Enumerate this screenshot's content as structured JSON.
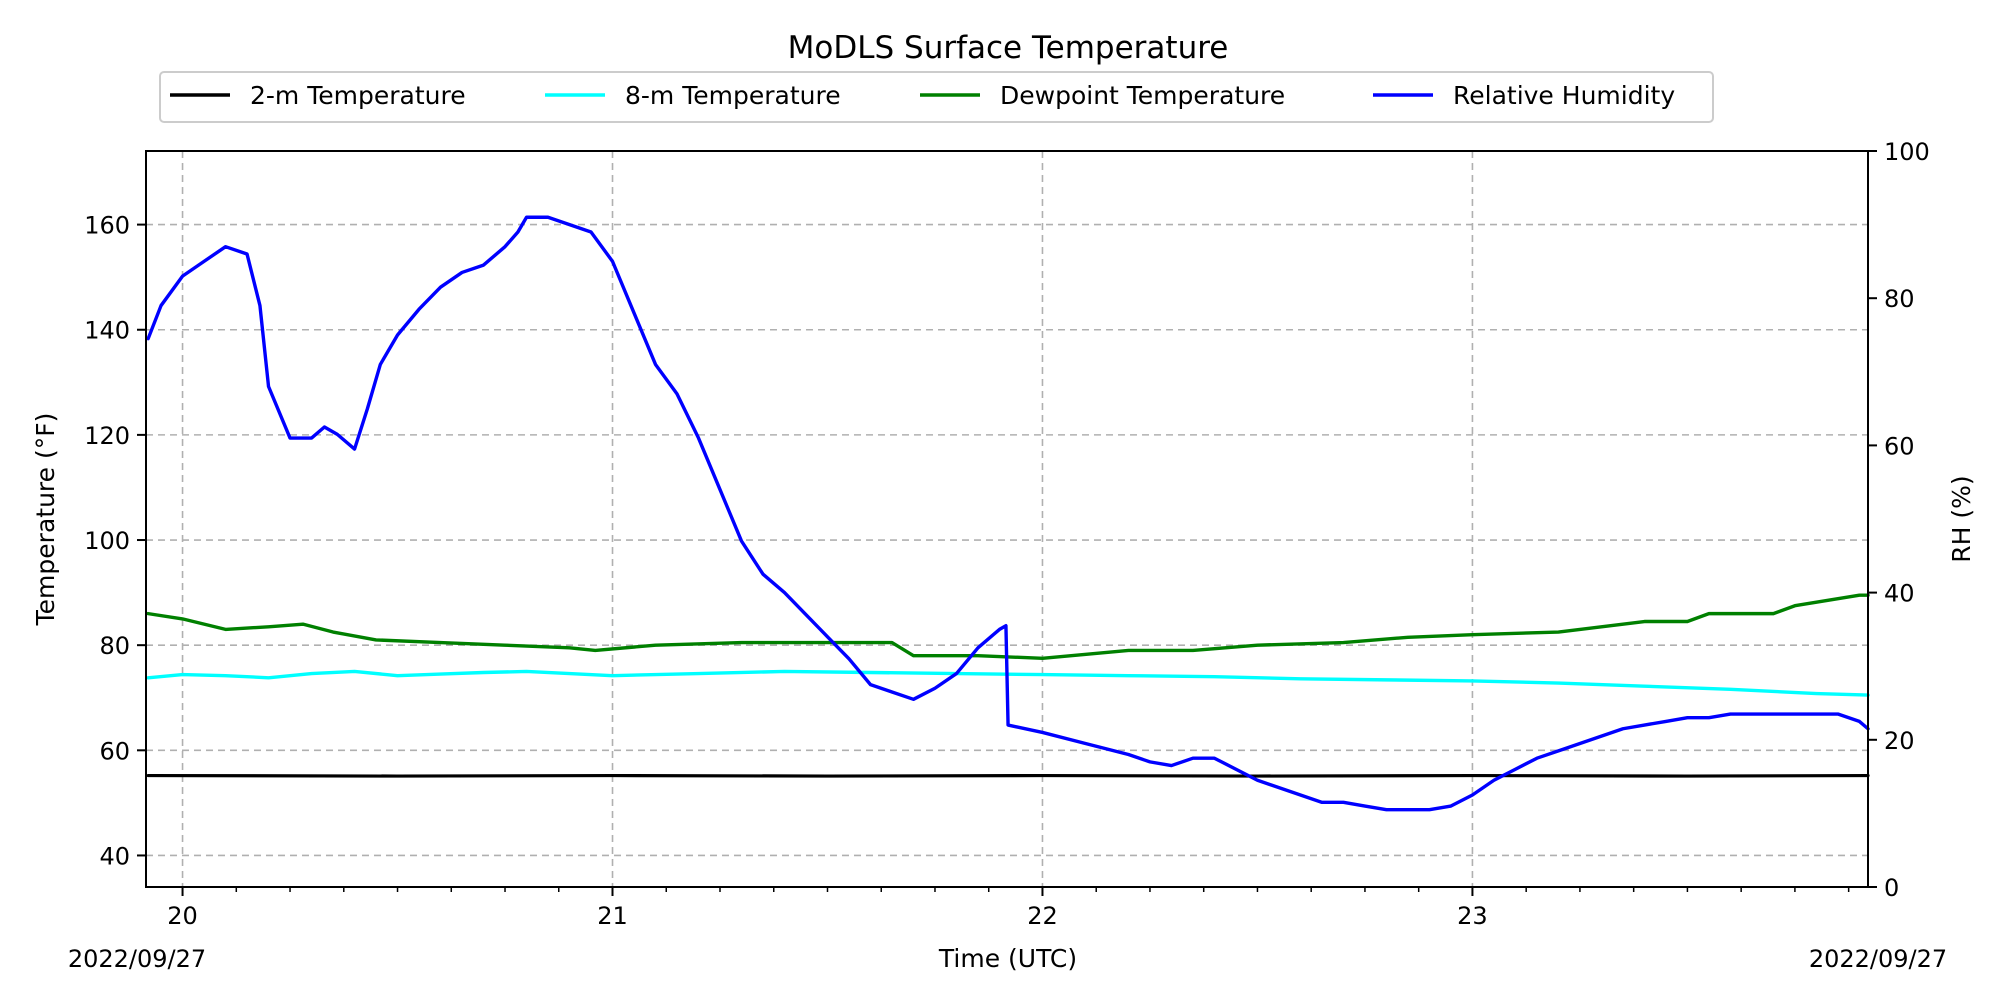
{
  "chart_data": {
    "type": "line",
    "title": "MoDLS Surface Temperature",
    "xlabel": "Time (UTC)",
    "ylabel": "Temperature ($^\\circ$F)",
    "ylabel_display": "Temperature (°F)",
    "y2label": "RH (%)",
    "x_start_label": "2022/09/27",
    "x_end_label": "2022/09/27",
    "xlim": [
      19.915,
      23.92
    ],
    "ylim": [
      34,
      174
    ],
    "y2lim": [
      0,
      100
    ],
    "grid": true,
    "legend_position": "top, above axes",
    "x_ticks": [
      {
        "value": 20,
        "label": "20"
      },
      {
        "value": 21,
        "label": "21"
      },
      {
        "value": 22,
        "label": "22"
      },
      {
        "value": 23,
        "label": "23"
      }
    ],
    "y_ticks": [
      {
        "value": 40,
        "label": "40"
      },
      {
        "value": 60,
        "label": "60"
      },
      {
        "value": 80,
        "label": "80"
      },
      {
        "value": 100,
        "label": "100"
      },
      {
        "value": 120,
        "label": "120"
      },
      {
        "value": 140,
        "label": "140"
      },
      {
        "value": 160,
        "label": "160"
      }
    ],
    "y2_ticks": [
      {
        "value": 0,
        "label": "0"
      },
      {
        "value": 20,
        "label": "20"
      },
      {
        "value": 40,
        "label": "40"
      },
      {
        "value": 60,
        "label": "60"
      },
      {
        "value": 80,
        "label": "80"
      },
      {
        "value": 100,
        "label": "100"
      }
    ],
    "series": [
      {
        "name": "2-m Temperature",
        "color": "#000000",
        "axis": "left",
        "x": [
          19.92,
          20.5,
          21.0,
          21.5,
          22.0,
          22.5,
          23.0,
          23.5,
          23.92
        ],
        "values": [
          55.2,
          55.1,
          55.2,
          55.1,
          55.2,
          55.1,
          55.2,
          55.1,
          55.2
        ]
      },
      {
        "name": "8-m Temperature",
        "color": "#00ffff",
        "axis": "left",
        "x": [
          19.92,
          20.0,
          20.1,
          20.2,
          20.3,
          20.4,
          20.5,
          20.6,
          20.7,
          20.8,
          20.9,
          21.0,
          21.2,
          21.4,
          21.6,
          21.8,
          22.0,
          22.2,
          22.4,
          22.6,
          22.8,
          23.0,
          23.2,
          23.4,
          23.6,
          23.8,
          23.92
        ],
        "values": [
          73.8,
          74.4,
          74.2,
          73.8,
          74.6,
          75.0,
          74.2,
          74.5,
          74.8,
          75.0,
          74.6,
          74.2,
          74.6,
          75.0,
          74.8,
          74.6,
          74.4,
          74.2,
          74.0,
          73.6,
          73.4,
          73.2,
          72.8,
          72.2,
          71.6,
          70.8,
          70.5
        ]
      },
      {
        "name": "Dewpoint Temperature",
        "color": "#008000",
        "axis": "left",
        "x": [
          19.92,
          20.0,
          20.05,
          20.1,
          20.2,
          20.28,
          20.35,
          20.45,
          20.6,
          20.75,
          20.9,
          20.96,
          21.1,
          21.3,
          21.5,
          21.65,
          21.7,
          21.85,
          22.0,
          22.2,
          22.35,
          22.5,
          22.7,
          22.85,
          23.0,
          23.2,
          23.4,
          23.5,
          23.55,
          23.7,
          23.75,
          23.9,
          23.92
        ],
        "values": [
          86.0,
          85.0,
          84.0,
          83.0,
          83.5,
          84.0,
          82.5,
          81.0,
          80.5,
          80.0,
          79.5,
          79.0,
          80.0,
          80.5,
          80.5,
          80.5,
          78.0,
          78.0,
          77.5,
          79.0,
          79.0,
          80.0,
          80.5,
          81.5,
          82.0,
          82.5,
          84.5,
          84.5,
          86.0,
          86.0,
          87.5,
          89.5,
          89.5
        ]
      },
      {
        "name": "Relative Humidity",
        "color": "#0000ff",
        "axis": "right",
        "x": [
          19.92,
          19.95,
          20.0,
          20.05,
          20.1,
          20.15,
          20.18,
          20.2,
          20.25,
          20.28,
          20.3,
          20.33,
          20.36,
          20.4,
          20.43,
          20.46,
          20.5,
          20.55,
          20.6,
          20.65,
          20.7,
          20.75,
          20.78,
          20.8,
          20.85,
          20.9,
          20.95,
          21.0,
          21.05,
          21.1,
          21.15,
          21.2,
          21.25,
          21.3,
          21.35,
          21.4,
          21.45,
          21.5,
          21.55,
          21.6,
          21.65,
          21.7,
          21.75,
          21.8,
          21.85,
          21.9,
          21.915,
          21.92,
          22.0,
          22.1,
          22.2,
          22.25,
          22.3,
          22.35,
          22.4,
          22.45,
          22.5,
          22.55,
          22.6,
          22.65,
          22.7,
          22.75,
          22.8,
          22.85,
          22.9,
          22.95,
          23.0,
          23.05,
          23.1,
          23.15,
          23.2,
          23.25,
          23.3,
          23.35,
          23.4,
          23.45,
          23.5,
          23.55,
          23.6,
          23.65,
          23.7,
          23.75,
          23.8,
          23.85,
          23.9,
          23.92
        ],
        "values": [
          74.5,
          79.0,
          83.0,
          85.0,
          87.0,
          86.0,
          79.0,
          68.0,
          61.0,
          61.0,
          61.0,
          62.5,
          61.5,
          59.5,
          65.0,
          71.0,
          75.0,
          78.5,
          81.5,
          83.5,
          84.5,
          87.0,
          89.0,
          91.0,
          91.0,
          90.0,
          89.0,
          85.0,
          78.0,
          71.0,
          67.0,
          61.0,
          54.0,
          47.0,
          42.5,
          40.0,
          37.0,
          34.0,
          31.0,
          27.5,
          26.5,
          25.5,
          27.0,
          29.0,
          32.5,
          35.0,
          35.5,
          22.0,
          21.0,
          19.5,
          18.0,
          17.0,
          16.5,
          17.5,
          17.5,
          16.0,
          14.5,
          13.5,
          12.5,
          11.5,
          11.5,
          11.0,
          10.5,
          10.5,
          10.5,
          11.0,
          12.5,
          14.5,
          16.0,
          17.5,
          18.5,
          19.5,
          20.5,
          21.5,
          22.0,
          22.5,
          23.0,
          23.0,
          23.5,
          23.5,
          23.5,
          23.5,
          23.5,
          23.5,
          22.5,
          21.5
        ]
      }
    ]
  }
}
